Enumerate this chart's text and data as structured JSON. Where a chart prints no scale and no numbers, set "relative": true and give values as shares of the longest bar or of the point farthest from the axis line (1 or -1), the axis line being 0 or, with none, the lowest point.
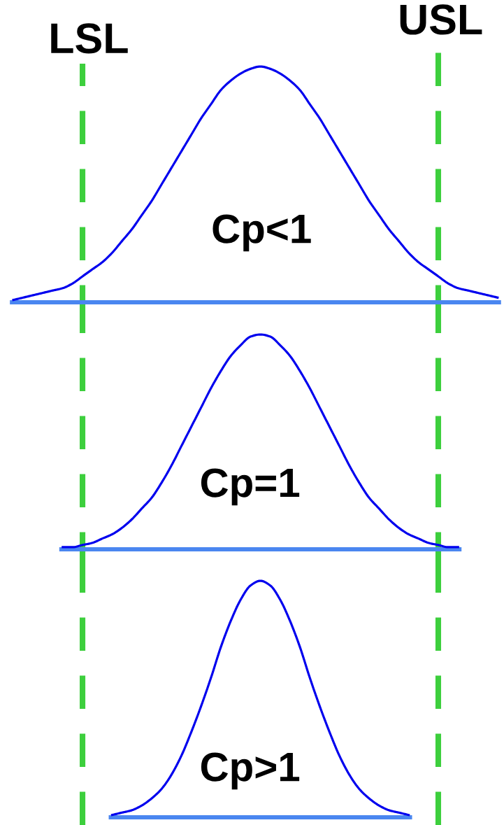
{
  "chart_data": [
    {
      "type": "line",
      "relative": true,
      "tick_labels": false,
      "categories": [
        null,
        null,
        null,
        null,
        null,
        null,
        null,
        null,
        null,
        null,
        null,
        null,
        null,
        null,
        null,
        null,
        null,
        null,
        null,
        null,
        null,
        null,
        null,
        null,
        null,
        null,
        null,
        null,
        null,
        null,
        null,
        null,
        null,
        null,
        null,
        null,
        null,
        null,
        null,
        null,
        null,
        null,
        null,
        null,
        null,
        null,
        null,
        null,
        null,
        null
      ],
      "series": [
        {
          "color": "#0000ee",
          "values": [
            0.01,
            0.02,
            0.03,
            0.04,
            0.05,
            0.06,
            0.08,
            0.11,
            0.14,
            0.17,
            0.21,
            0.26,
            0.31,
            0.37,
            0.43,
            0.5,
            0.57,
            0.64,
            0.71,
            0.78,
            0.84,
            0.9,
            0.94,
            0.97,
            0.99,
            1,
            0.99,
            0.97,
            0.94,
            0.9,
            0.84,
            0.78,
            0.71,
            0.64,
            0.57,
            0.5,
            0.43,
            0.37,
            0.31,
            0.26,
            0.21,
            0.17,
            0.14,
            0.11,
            0.08,
            0.06,
            0.05,
            0.04,
            0.03,
            0.02
          ]
        }
      ],
      "annotations": [
        "LSL",
        "USL",
        "Cp<1"
      ]
    },
    {
      "type": "line",
      "relative": true,
      "tick_labels": false,
      "categories": [
        null,
        null,
        null,
        null,
        null,
        null,
        null,
        null,
        null,
        null,
        null,
        null,
        null,
        null,
        null,
        null,
        null,
        null,
        null,
        null,
        null,
        null,
        null,
        null,
        null,
        null,
        null,
        null,
        null,
        null,
        null,
        null,
        null,
        null,
        null,
        null,
        null,
        null,
        null,
        null,
        null,
        null,
        null,
        null,
        null,
        null,
        null,
        null,
        null,
        null
      ],
      "series": [
        {
          "color": "#0000ee",
          "values": [
            null,
            null,
            null,
            null,
            null,
            0.01,
            0.01,
            0.02,
            0.03,
            0.05,
            0.07,
            0.1,
            0.14,
            0.19,
            0.24,
            0.31,
            0.39,
            0.48,
            0.57,
            0.66,
            0.75,
            0.83,
            0.9,
            0.95,
            0.99,
            1,
            0.99,
            0.95,
            0.9,
            0.83,
            0.75,
            0.66,
            0.57,
            0.48,
            0.39,
            0.31,
            0.24,
            0.19,
            0.14,
            0.1,
            0.07,
            0.05,
            0.03,
            0.02,
            0.01,
            0.01,
            null,
            null,
            null,
            null
          ]
        }
      ],
      "annotations": [
        "Cp=1"
      ]
    },
    {
      "type": "line",
      "relative": true,
      "tick_labels": false,
      "categories": [
        null,
        null,
        null,
        null,
        null,
        null,
        null,
        null,
        null,
        null,
        null,
        null,
        null,
        null,
        null,
        null,
        null,
        null,
        null,
        null,
        null,
        null,
        null,
        null,
        null,
        null,
        null,
        null,
        null,
        null,
        null,
        null,
        null,
        null,
        null,
        null,
        null,
        null,
        null,
        null,
        null,
        null,
        null,
        null,
        null,
        null,
        null,
        null,
        null,
        null
      ],
      "series": [
        {
          "color": "#0000ee",
          "values": [
            null,
            null,
            null,
            null,
            null,
            null,
            null,
            null,
            null,
            null,
            0.01,
            0.02,
            0.03,
            0.05,
            0.08,
            0.12,
            0.18,
            0.26,
            0.36,
            0.47,
            0.59,
            0.72,
            0.83,
            0.92,
            0.98,
            1,
            0.98,
            0.92,
            0.83,
            0.72,
            0.59,
            0.47,
            0.36,
            0.26,
            0.18,
            0.12,
            0.08,
            0.05,
            0.03,
            0.02,
            0.01,
            null,
            null,
            null,
            null,
            null,
            null,
            null,
            null,
            null
          ]
        }
      ],
      "annotations": [
        "Cp>1"
      ]
    }
  ]
}
